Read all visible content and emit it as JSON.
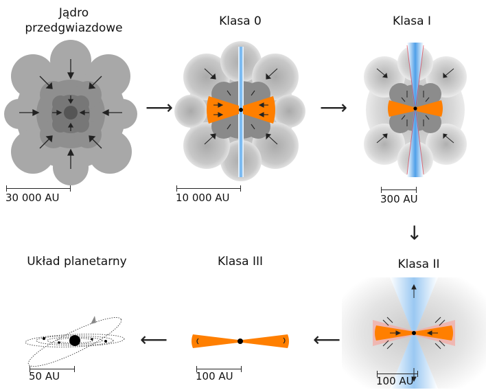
{
  "stages": [
    {
      "title_line1": "Jądro",
      "title_line2": "przedgwiazdowe",
      "scale": "30 000 AU"
    },
    {
      "title": "Klasa 0",
      "scale": "10 000 AU"
    },
    {
      "title": "Klasa I",
      "scale": "300 AU"
    },
    {
      "title": "Klasa II",
      "scale": "100 AU"
    },
    {
      "title": "Klasa III",
      "scale": "100 AU"
    },
    {
      "title": "Układ planetarny",
      "scale": "50 AU"
    }
  ],
  "colors": {
    "envelope": "#a9a9a9",
    "disk": "#ff7f00",
    "outflow": "#5aa9ee",
    "star": "#000000"
  }
}
